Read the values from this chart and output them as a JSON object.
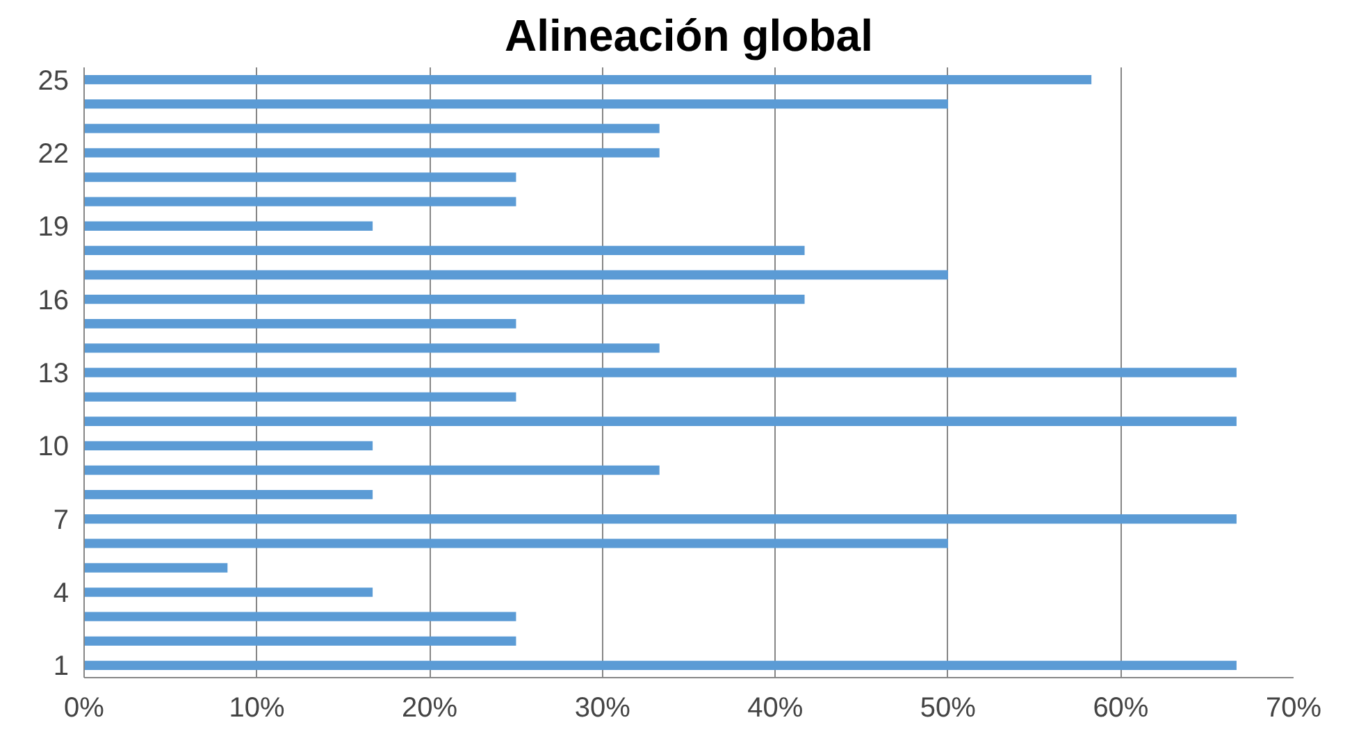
{
  "chart_data": {
    "type": "bar",
    "orientation": "horizontal",
    "title": "Alineación global",
    "categories": [
      "25",
      null,
      null,
      "22",
      null,
      null,
      "19",
      null,
      null,
      "16",
      null,
      null,
      "13",
      null,
      null,
      "10",
      null,
      null,
      "7",
      null,
      null,
      "4",
      null,
      null,
      "1"
    ],
    "values": [
      58.3,
      50,
      33.3,
      33.3,
      25,
      25,
      16.7,
      41.7,
      50,
      41.7,
      25,
      33.3,
      66.7,
      25,
      66.7,
      16.7,
      33.3,
      16.7,
      66.7,
      50,
      8.3,
      16.7,
      25,
      25,
      66.7
    ],
    "color": "#5b9bd5",
    "xlim": [
      0,
      70
    ],
    "xticks": [
      {
        "value": 0,
        "label": "0%"
      },
      {
        "value": 10,
        "label": "10%"
      },
      {
        "value": 20,
        "label": "20%"
      },
      {
        "value": 30,
        "label": "30%"
      },
      {
        "value": 40,
        "label": "40%"
      },
      {
        "value": 50,
        "label": "50%"
      },
      {
        "value": 60,
        "label": "60%"
      },
      {
        "value": 70,
        "label": "70%"
      }
    ],
    "grid": "x"
  }
}
